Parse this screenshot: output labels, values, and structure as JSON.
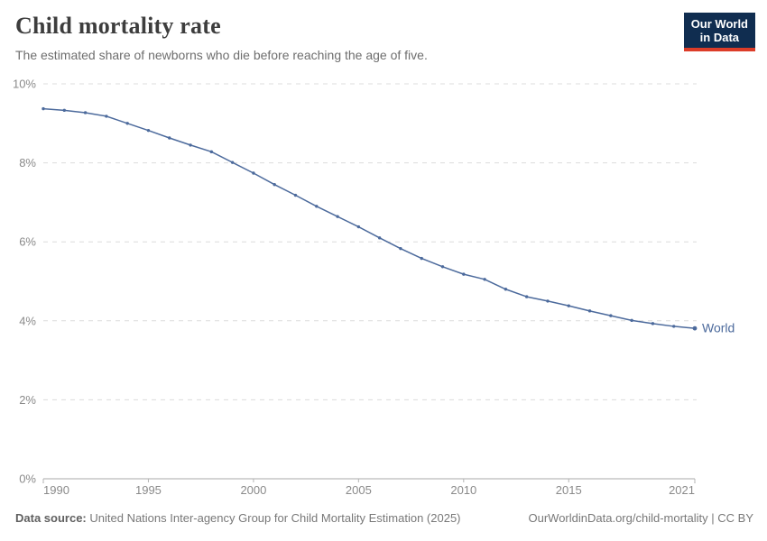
{
  "header": {
    "title": "Child mortality rate",
    "subtitle": "The estimated share of newborns who die before reaching the age of five.",
    "logo": {
      "line1": "Our World",
      "line2": "in Data",
      "bg_color": "#102d50",
      "accent_color": "#dc3c28"
    }
  },
  "chart_data": {
    "type": "line",
    "title": "Child mortality rate",
    "xlabel": "",
    "ylabel": "",
    "xlim": [
      1990,
      2021
    ],
    "ylim": [
      0,
      10
    ],
    "grid": "horizontal-dashed",
    "legend_position": "end-of-line-label",
    "line_color": "#4C6A9C",
    "x_ticks": [
      {
        "value": 1990,
        "label": "1990",
        "anchor": "start"
      },
      {
        "value": 1995,
        "label": "1995",
        "anchor": "middle"
      },
      {
        "value": 2000,
        "label": "2000",
        "anchor": "middle"
      },
      {
        "value": 2005,
        "label": "2005",
        "anchor": "middle"
      },
      {
        "value": 2010,
        "label": "2010",
        "anchor": "middle"
      },
      {
        "value": 2015,
        "label": "2015",
        "anchor": "middle"
      },
      {
        "value": 2021,
        "label": "2021",
        "anchor": "end"
      }
    ],
    "y_ticks": [
      {
        "value": 0,
        "label": "0%"
      },
      {
        "value": 2,
        "label": "2%"
      },
      {
        "value": 4,
        "label": "4%"
      },
      {
        "value": 6,
        "label": "6%"
      },
      {
        "value": 8,
        "label": "8%"
      },
      {
        "value": 10,
        "label": "10%"
      }
    ],
    "series": [
      {
        "name": "World",
        "color": "#4C6A9C",
        "x": [
          1990,
          1991,
          1992,
          1993,
          1994,
          1995,
          1996,
          1997,
          1998,
          1999,
          2000,
          2001,
          2002,
          2003,
          2004,
          2005,
          2006,
          2007,
          2008,
          2009,
          2010,
          2011,
          2012,
          2013,
          2014,
          2015,
          2016,
          2017,
          2018,
          2019,
          2020,
          2021
        ],
        "values": [
          9.37,
          9.33,
          9.27,
          9.18,
          9.0,
          8.82,
          8.63,
          8.45,
          8.28,
          8.01,
          7.74,
          7.45,
          7.18,
          6.9,
          6.64,
          6.38,
          6.1,
          5.83,
          5.58,
          5.37,
          5.18,
          5.05,
          4.8,
          4.61,
          4.5,
          4.38,
          4.25,
          4.13,
          4.01,
          3.93,
          3.86,
          3.81
        ]
      }
    ]
  },
  "footer": {
    "datasource_label": "Data source:",
    "datasource_text": "United Nations Inter-agency Group for Child Mortality Estimation (2025)",
    "link_text": "OurWorldinData.org/child-mortality | CC BY"
  }
}
